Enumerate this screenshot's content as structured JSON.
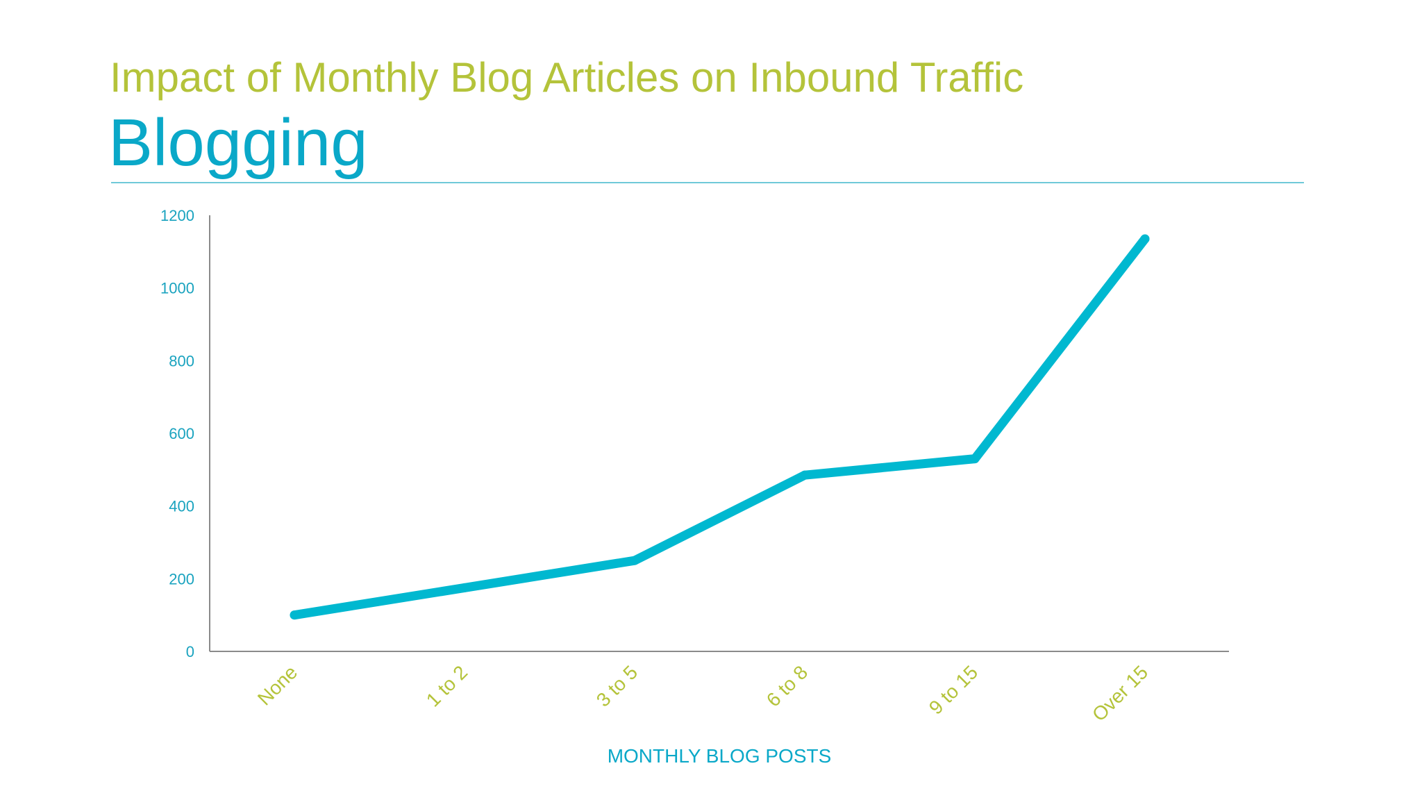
{
  "header": {
    "subtitle": "Impact of Monthly Blog Articles on Inbound Traffic",
    "title": "Blogging"
  },
  "colors": {
    "line": "#00b8d0",
    "subtitle": "#b4c33a",
    "title": "#0aa8c8",
    "axis": "#8a8a8a"
  },
  "chart_data": {
    "type": "line",
    "title": "Blogging",
    "subtitle": "Impact of Monthly Blog Articles on Inbound Traffic",
    "xlabel": "MONTHLY BLOG POSTS",
    "ylabel": "",
    "categories": [
      "None",
      "1 to 2",
      "3 to 5",
      "6 to 8",
      "9 to 15",
      "Over 15"
    ],
    "series": [
      {
        "values": [
          100,
          175,
          250,
          485,
          530,
          1135
        ]
      }
    ],
    "ylim": [
      0,
      1200
    ],
    "yticks": [
      "0",
      "200",
      "400",
      "600",
      "800",
      "1000",
      "1200"
    ],
    "grid": false,
    "legend": "none"
  }
}
